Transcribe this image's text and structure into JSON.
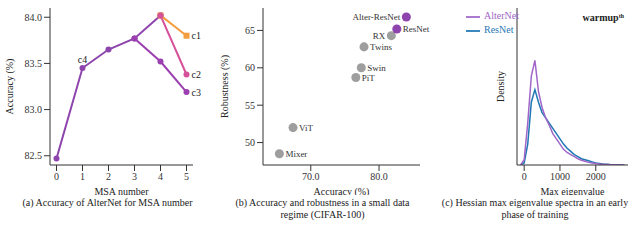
{
  "chart_data": [
    {
      "type": "line",
      "caption": "(a) Accuracy of AlterNet for MSA number",
      "x_label": "MSA number",
      "y_label": "Accuracy (%)",
      "xlim": [
        -0.25,
        5.25
      ],
      "xticks": [
        0,
        1,
        2,
        3,
        4,
        5
      ],
      "ylim": [
        82.4,
        84.1
      ],
      "yticks": [
        82.5,
        {
          "value": 83,
          "label": "83.0"
        },
        83.5,
        {
          "value": 84,
          "label": "84.0"
        }
      ],
      "series": [
        {
          "color": "#8e44ad",
          "marker": "circle",
          "x": [
            0,
            1,
            2,
            3,
            4
          ],
          "values": [
            82.47,
            83.45,
            83.65,
            83.77,
            84.02
          ]
        },
        {
          "color": "#f39c40",
          "marker": "square",
          "x": [
            4,
            5
          ],
          "values": [
            84.02,
            83.8
          ]
        },
        {
          "color": "#d6509a",
          "marker": "circle",
          "x": [
            4,
            5
          ],
          "values": [
            84.02,
            83.38
          ]
        },
        {
          "color": "#9b3fb0",
          "marker": "circle",
          "x": [
            3,
            4,
            5
          ],
          "values": [
            83.77,
            83.52,
            83.19
          ]
        }
      ],
      "annotations": [
        {
          "text": "c4",
          "x": 1,
          "y": 83.45
        },
        {
          "text": "c1",
          "x": 5,
          "y": 83.8
        },
        {
          "text": "c2",
          "x": 5,
          "y": 83.38
        },
        {
          "text": "c3",
          "x": 5,
          "y": 83.19
        }
      ]
    },
    {
      "type": "scatter",
      "caption": "(b) Accuracy and robustness in a small data regime (CIFAR-100)",
      "x_label": "Accuracy (%)",
      "y_label": "Robustness (%)",
      "xlim": [
        63,
        86
      ],
      "xticks": [
        {
          "value": 70,
          "label": "70.0"
        },
        {
          "value": 80,
          "label": "80.0"
        }
      ],
      "ylim": [
        47,
        68
      ],
      "yticks": [
        50,
        55,
        60,
        65
      ],
      "labels": [
        "Mixer",
        "ViT",
        "PiT",
        "Swin",
        "Twins",
        "RX",
        "ResNet",
        "Alter-ResNet"
      ],
      "x": [
        65.4,
        67.4,
        76.6,
        77.4,
        77.8,
        81.8,
        82.6,
        84.0
      ],
      "values": [
        48.5,
        52.0,
        58.7,
        60.0,
        62.8,
        64.3,
        65.2,
        66.8
      ],
      "colors": [
        "#9e9e9e",
        "#9e9e9e",
        "#9e9e9e",
        "#9e9e9e",
        "#9e9e9e",
        "#9e9e9e",
        "#8e44ad",
        "#8e44ad"
      ]
    },
    {
      "type": "line",
      "caption": "(c) Hessian max eigenvalue spectra in an early phase of training",
      "x_label": "Max eigenvalue",
      "y_label": "Density",
      "annotation": "warmupᵗʰ",
      "legend": "upper left",
      "tick_labels": "x",
      "xlim": [
        -200,
        2900
      ],
      "xticks": [
        0,
        1000,
        2000
      ],
      "ylim": [
        0,
        1.5
      ],
      "x": [
        -100,
        0,
        100,
        200,
        300,
        400,
        500,
        600,
        700,
        800,
        900,
        1000,
        1100,
        1200,
        1300,
        1400,
        1500,
        1600,
        1700,
        1800,
        1900,
        2000,
        2100,
        2200,
        2300,
        2400,
        2500,
        2600,
        2700,
        2800
      ],
      "series": [
        {
          "name": "ResNet",
          "color": "#1f77b4",
          "values": [
            0,
            0.02,
            0.2,
            0.6,
            0.72,
            0.6,
            0.5,
            0.45,
            0.4,
            0.35,
            0.3,
            0.25,
            0.2,
            0.16,
            0.13,
            0.1,
            0.08,
            0.06,
            0.05,
            0.04,
            0.03,
            0.02,
            0.015,
            0.01,
            0.008,
            0.005,
            0.003,
            0.002,
            0.001,
            0
          ]
        },
        {
          "name": "AlterNet",
          "color": "#a066c8",
          "values": [
            0,
            0.05,
            0.4,
            0.85,
            1.0,
            0.7,
            0.55,
            0.45,
            0.38,
            0.3,
            0.25,
            0.2,
            0.15,
            0.12,
            0.1,
            0.08,
            0.06,
            0.045,
            0.035,
            0.025,
            0.02,
            0.015,
            0.01,
            0.007,
            0.005,
            0.003,
            0.002,
            0.001,
            0,
            0
          ]
        }
      ]
    }
  ]
}
